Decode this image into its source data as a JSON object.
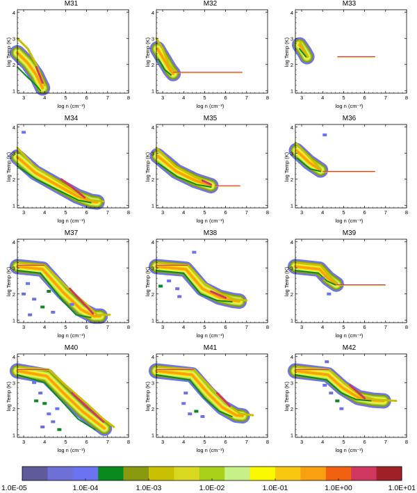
{
  "chart_data": {
    "type": "heatmap",
    "xlabel": "log n (cm⁻³)",
    "ylabel": "log Temp (K)",
    "xlim": [
      2.7,
      8
    ],
    "ylim": [
      0.9,
      4.1
    ],
    "x_ticks": [
      3,
      4,
      5,
      6,
      7,
      8
    ],
    "y_ticks": [
      1,
      2,
      3,
      4
    ],
    "colorbar": {
      "scale": "log",
      "tick_labels": [
        "1.0E-05",
        "1.0E-04",
        "1.0E-03",
        "1.0E-02",
        "1.0E-01",
        "1.0E+00",
        "1.0E+01"
      ],
      "colors": [
        "#5f5a9a",
        "#6f6fd8",
        "#6c73f0",
        "#0a8a1e",
        "#8a9a10",
        "#c8c000",
        "#d8d820",
        "#a8d018",
        "#c8f088",
        "#f8f800",
        "#f8c810",
        "#f8a010",
        "#f06010",
        "#d03860",
        "#a02028"
      ]
    },
    "panels": [
      {
        "title": "M31",
        "plateau_T": null,
        "plateau_x": null,
        "ridge": [
          [
            2.7,
            3.0
          ],
          [
            3.2,
            2.6
          ],
          [
            3.6,
            2.0
          ],
          [
            4.0,
            1.2
          ]
        ],
        "lower": [
          [
            2.7,
            1.9
          ],
          [
            3.2,
            1.5
          ],
          [
            3.6,
            1.2
          ],
          [
            3.8,
            1.0
          ]
        ],
        "peak": [
          [
            3.6,
            1.9
          ],
          [
            3.9,
            1.3
          ]
        ],
        "scatter": []
      },
      {
        "title": "M32",
        "plateau_T": 1.7,
        "plateau_x": [
          3.5,
          6.8
        ],
        "ridge": [
          [
            2.7,
            3.0
          ],
          [
            3.0,
            2.6
          ],
          [
            3.3,
            2.0
          ],
          [
            3.6,
            1.7
          ]
        ],
        "lower": [
          [
            2.8,
            2.2
          ],
          [
            3.1,
            1.8
          ],
          [
            3.4,
            1.6
          ]
        ],
        "peak": [],
        "scatter": []
      },
      {
        "title": "M33",
        "plateau_T": 2.3,
        "plateau_x": [
          4.7,
          6.5
        ],
        "ridge": [
          [
            2.9,
            2.9
          ],
          [
            3.1,
            2.6
          ],
          [
            3.3,
            2.3
          ]
        ],
        "lower": [
          [
            2.9,
            2.6
          ],
          [
            3.2,
            2.3
          ]
        ],
        "peak": [],
        "scatter": []
      },
      {
        "title": "M34",
        "plateau_T": null,
        "plateau_x": null,
        "ridge": [
          [
            2.7,
            3.2
          ],
          [
            3.5,
            2.5
          ],
          [
            4.5,
            2.0
          ],
          [
            5.5,
            1.5
          ],
          [
            6.2,
            1.2
          ],
          [
            6.8,
            1.15
          ]
        ],
        "lower": [
          [
            2.7,
            2.5
          ],
          [
            3.6,
            2.0
          ],
          [
            4.6,
            1.6
          ],
          [
            5.6,
            1.2
          ],
          [
            6.2,
            1.1
          ]
        ],
        "peak": [
          [
            4.8,
            2.0
          ],
          [
            5.3,
            1.7
          ],
          [
            5.9,
            1.3
          ]
        ],
        "scatter": [
          [
            3.0,
            3.8
          ]
        ]
      },
      {
        "title": "M35",
        "plateau_T": 1.75,
        "plateau_x": [
          5.5,
          6.7
        ],
        "ridge": [
          [
            2.7,
            3.2
          ],
          [
            3.6,
            2.5
          ],
          [
            4.5,
            2.1
          ],
          [
            5.3,
            1.8
          ]
        ],
        "lower": [
          [
            2.8,
            2.6
          ],
          [
            3.7,
            2.1
          ],
          [
            4.6,
            1.8
          ],
          [
            5.3,
            1.7
          ]
        ],
        "peak": [
          [
            4.9,
            1.95
          ],
          [
            5.3,
            1.8
          ]
        ],
        "scatter": []
      },
      {
        "title": "M36",
        "plateau_T": 2.3,
        "plateau_x": [
          4.0,
          6.5
        ],
        "ridge": [
          [
            2.7,
            3.4
          ],
          [
            3.3,
            2.9
          ],
          [
            3.9,
            2.4
          ]
        ],
        "lower": [
          [
            2.8,
            2.8
          ],
          [
            3.4,
            2.4
          ],
          [
            3.9,
            2.3
          ]
        ],
        "peak": [],
        "scatter": [
          [
            4.1,
            3.7
          ]
        ]
      },
      {
        "title": "M37",
        "plateau_T": 3.1,
        "plateau_x": [
          2.7,
          4.0
        ],
        "ridge": [
          [
            2.7,
            3.2
          ],
          [
            4.0,
            3.1
          ],
          [
            5.0,
            2.3
          ],
          [
            6.0,
            1.6
          ],
          [
            6.5,
            1.2
          ],
          [
            7.1,
            1.2
          ]
        ],
        "lower": [
          [
            2.7,
            2.9
          ],
          [
            3.8,
            2.8
          ],
          [
            4.8,
            1.8
          ],
          [
            5.5,
            1.2
          ],
          [
            6.2,
            1.1
          ]
        ],
        "peak": [
          [
            5.2,
            2.2
          ],
          [
            5.9,
            1.6
          ],
          [
            6.3,
            1.25
          ]
        ],
        "scatter": [
          [
            3.2,
            2.4
          ],
          [
            3.5,
            1.8
          ],
          [
            3.9,
            1.5
          ],
          [
            4.4,
            1.3
          ],
          [
            3.3,
            1.2
          ],
          [
            4.2,
            2.1
          ],
          [
            5.3,
            1.6
          ],
          [
            3.0,
            2.0
          ]
        ]
      },
      {
        "title": "M38",
        "plateau_T": 3.1,
        "plateau_x": [
          2.7,
          4.2
        ],
        "ridge": [
          [
            2.7,
            3.2
          ],
          [
            4.2,
            3.1
          ],
          [
            5.0,
            2.4
          ],
          [
            5.8,
            2.0
          ],
          [
            6.4,
            1.8
          ],
          [
            7.0,
            1.75
          ]
        ],
        "lower": [
          [
            2.7,
            2.9
          ],
          [
            4.0,
            2.8
          ],
          [
            4.8,
            2.0
          ],
          [
            5.6,
            1.75
          ],
          [
            6.3,
            1.7
          ]
        ],
        "peak": [
          [
            5.3,
            2.1
          ],
          [
            6.0,
            1.85
          ]
        ],
        "scatter": [
          [
            3.3,
            2.5
          ],
          [
            3.7,
            2.2
          ],
          [
            2.9,
            2.3
          ],
          [
            4.5,
            3.6
          ],
          [
            3.8,
            1.9
          ]
        ]
      },
      {
        "title": "M39",
        "plateau_T": 2.35,
        "plateau_x": [
          4.6,
          7.0
        ],
        "ridge": [
          [
            2.7,
            3.2
          ],
          [
            3.9,
            3.1
          ],
          [
            4.3,
            2.7
          ],
          [
            4.7,
            2.4
          ]
        ],
        "lower": [
          [
            2.7,
            2.9
          ],
          [
            3.8,
            2.8
          ],
          [
            4.2,
            2.5
          ],
          [
            4.6,
            2.35
          ]
        ],
        "peak": [],
        "scatter": [
          [
            4.3,
            2.0
          ],
          [
            4.0,
            2.6
          ]
        ]
      },
      {
        "title": "M40",
        "plateau_T": 3.5,
        "plateau_x": [
          2.7,
          4.2
        ],
        "ridge": [
          [
            2.7,
            3.6
          ],
          [
            4.2,
            3.5
          ],
          [
            5.0,
            2.9
          ],
          [
            6.0,
            2.2
          ],
          [
            6.8,
            1.6
          ],
          [
            7.3,
            1.3
          ]
        ],
        "lower": [
          [
            2.7,
            3.3
          ],
          [
            4.0,
            3.0
          ],
          [
            4.8,
            2.3
          ],
          [
            5.6,
            1.6
          ],
          [
            6.4,
            1.2
          ]
        ],
        "peak": [
          [
            5.3,
            2.6
          ],
          [
            6.1,
            2.0
          ],
          [
            6.8,
            1.5
          ]
        ],
        "scatter": [
          [
            3.5,
            3.0
          ],
          [
            3.8,
            2.6
          ],
          [
            4.0,
            2.2
          ],
          [
            4.2,
            1.8
          ],
          [
            4.4,
            1.5
          ],
          [
            3.6,
            2.3
          ],
          [
            4.6,
            2.0
          ],
          [
            3.9,
            1.3
          ],
          [
            4.7,
            1.2
          ]
        ]
      },
      {
        "title": "M41",
        "plateau_T": 3.5,
        "plateau_x": [
          2.7,
          4.5
        ],
        "ridge": [
          [
            2.7,
            3.6
          ],
          [
            4.5,
            3.5
          ],
          [
            5.3,
            2.8
          ],
          [
            6.0,
            2.2
          ],
          [
            6.7,
            1.8
          ],
          [
            7.3,
            1.75
          ]
        ],
        "lower": [
          [
            2.7,
            3.3
          ],
          [
            4.3,
            3.1
          ],
          [
            5.0,
            2.4
          ],
          [
            5.7,
            1.9
          ],
          [
            6.3,
            1.7
          ]
        ],
        "peak": [
          [
            5.6,
            2.6
          ],
          [
            6.2,
            2.1
          ]
        ],
        "scatter": [
          [
            4.0,
            2.2
          ],
          [
            4.3,
            1.8
          ],
          [
            4.6,
            1.9
          ],
          [
            4.9,
            1.7
          ],
          [
            4.1,
            2.6
          ]
        ]
      },
      {
        "title": "M42",
        "plateau_T": 3.5,
        "plateau_x": [
          2.7,
          4.3
        ],
        "ridge": [
          [
            2.7,
            3.6
          ],
          [
            4.3,
            3.5
          ],
          [
            5.0,
            3.0
          ],
          [
            5.8,
            2.5
          ],
          [
            6.5,
            2.35
          ],
          [
            7.5,
            2.3
          ]
        ],
        "lower": [
          [
            2.7,
            3.3
          ],
          [
            4.2,
            3.1
          ],
          [
            4.9,
            2.6
          ],
          [
            5.6,
            2.35
          ],
          [
            6.3,
            2.3
          ]
        ],
        "peak": [
          [
            5.3,
            2.9
          ],
          [
            6.0,
            2.4
          ]
        ],
        "scatter": [
          [
            4.1,
            2.9
          ],
          [
            4.4,
            2.6
          ],
          [
            4.7,
            2.3
          ],
          [
            4.9,
            2.0
          ],
          [
            4.2,
            3.8
          ]
        ]
      }
    ]
  }
}
